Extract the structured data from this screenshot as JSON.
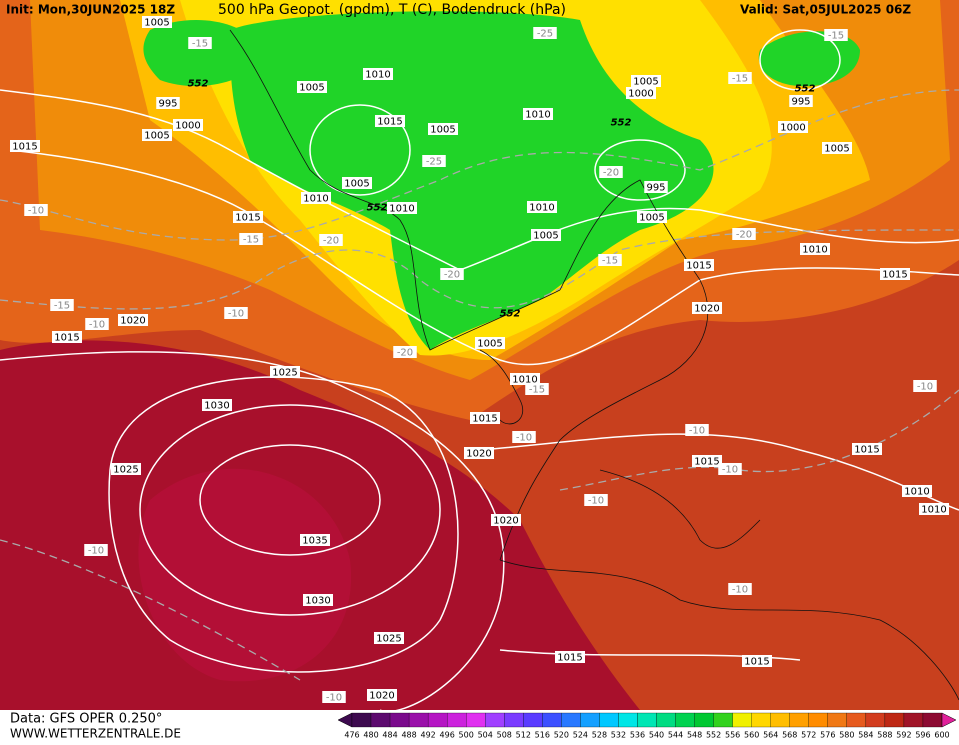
{
  "header": {
    "init": "Init: Mon,30JUN2025 18Z",
    "title": "500 hPa Geopot. (gpdm), T (C), Bodendruck (hPa)",
    "valid": "Valid: Sat,05JUL2025 06Z"
  },
  "footer": {
    "source": "Data: GFS OPER 0.250°",
    "site": "WWW.WETTERZENTRALE.DE"
  },
  "isobar_labels": [
    "1005",
    "995",
    "1000",
    "1005",
    "1015",
    "1015",
    "1010",
    "1005",
    "1010",
    "1010",
    "1005",
    "1015",
    "1005",
    "1010",
    "1005",
    "1000",
    "995",
    "1000",
    "1005",
    "995",
    "1005",
    "1010",
    "1005",
    "1010",
    "1015",
    "1015",
    "1020",
    "1005",
    "1010",
    "1015",
    "1020",
    "1025",
    "1030",
    "1025",
    "1035",
    "1030",
    "1025",
    "1020",
    "1015",
    "1015",
    "1020",
    "1015",
    "1015",
    "1010",
    "1010",
    "1020",
    "1015"
  ],
  "temperature_labels": [
    "-15",
    "-10",
    "-15",
    "-20",
    "-25",
    "-25",
    "-15",
    "-15",
    "-20",
    "-20",
    "-20",
    "-20",
    "-15",
    "-15",
    "-10",
    "-10",
    "-10",
    "-10",
    "-10",
    "-10",
    "-10",
    "-15",
    "-10",
    "-10",
    "-10"
  ],
  "geopotential_labels": [
    "552",
    "552",
    "552",
    "552",
    "552"
  ],
  "colorbar": {
    "labels": [
      476,
      480,
      484,
      488,
      492,
      496,
      500,
      504,
      508,
      512,
      516,
      520,
      524,
      528,
      532,
      536,
      540,
      544,
      548,
      552,
      556,
      560,
      564,
      568,
      572,
      576,
      580,
      584,
      588,
      592,
      596,
      600
    ],
    "colors": [
      "#3d0a4f",
      "#5c0a6e",
      "#7a0a8c",
      "#9a10aa",
      "#b515c4",
      "#cc22dd",
      "#e030f0",
      "#a040ff",
      "#7a3cff",
      "#5a3cff",
      "#3c50ff",
      "#2878ff",
      "#14a0ff",
      "#00c8ff",
      "#00e6e6",
      "#00e6b4",
      "#00dc82",
      "#00d250",
      "#00c832",
      "#32d21e",
      "#f0f000",
      "#ffd700",
      "#ffbe00",
      "#ffa000",
      "#ff8c00",
      "#f07814",
      "#e65a1e",
      "#d23c1e",
      "#be2814",
      "#a01428",
      "#8c0a32"
    ]
  }
}
